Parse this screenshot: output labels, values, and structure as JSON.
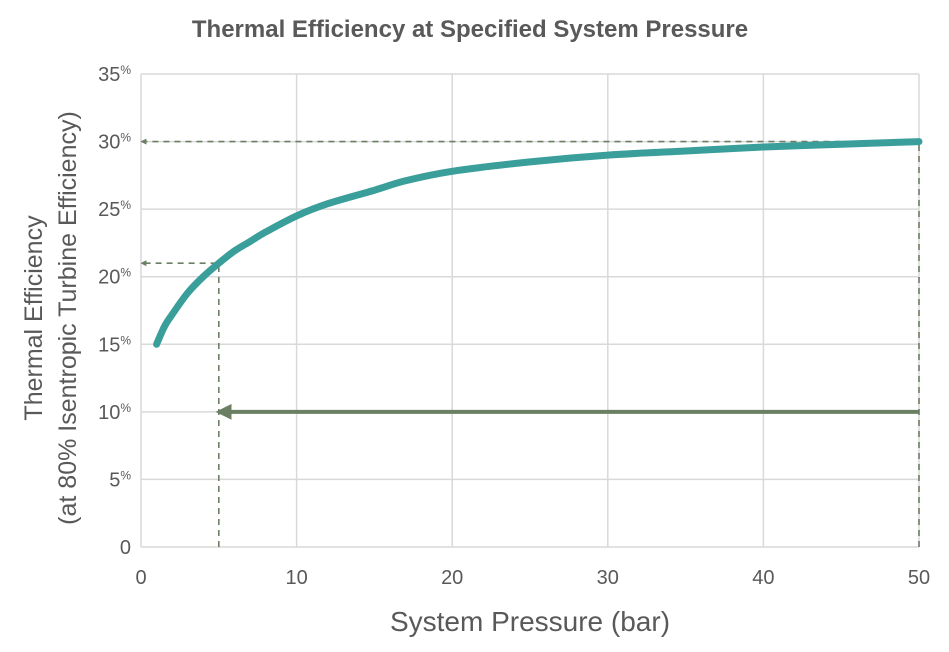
{
  "chart_data": {
    "type": "line",
    "title": "Thermal Efficiency at Specified System Pressure",
    "xlabel": "System Pressure (bar)",
    "ylabel": [
      "Thermal Efficiency",
      "(at 80% Isentropic Turbine Efficiency)"
    ],
    "xlim": [
      0,
      50
    ],
    "ylim": [
      0,
      35
    ],
    "x_ticks": [
      "0",
      "10",
      "20",
      "30",
      "40",
      "50"
    ],
    "y_ticks": [
      {
        "value": 0,
        "label": "0",
        "suffix": ""
      },
      {
        "value": 5,
        "label": "5",
        "suffix": "%"
      },
      {
        "value": 10,
        "label": "10",
        "suffix": "%"
      },
      {
        "value": 15,
        "label": "15",
        "suffix": "%"
      },
      {
        "value": 20,
        "label": "20",
        "suffix": "%"
      },
      {
        "value": 25,
        "label": "25",
        "suffix": "%"
      },
      {
        "value": 30,
        "label": "30",
        "suffix": "%"
      },
      {
        "value": 35,
        "label": "35",
        "suffix": "%"
      }
    ],
    "grid": true,
    "series": [
      {
        "color": "#3a9e9a",
        "x": [
          1,
          1.5,
          2,
          3,
          4,
          5,
          6,
          7,
          8,
          10,
          12,
          15,
          17,
          20,
          25,
          30,
          35,
          40,
          45,
          50
        ],
        "y": [
          15.0,
          16.3,
          17.2,
          18.8,
          20.0,
          21.0,
          21.9,
          22.6,
          23.3,
          24.5,
          25.4,
          26.4,
          27.1,
          27.8,
          28.5,
          29.0,
          29.3,
          29.6,
          29.8,
          30.0
        ]
      }
    ],
    "annotations": [
      {
        "kind": "dashed-arrow",
        "color": "#6b7f64",
        "points": [
          [
            50,
            0
          ],
          [
            50,
            30
          ],
          [
            0,
            30
          ]
        ]
      },
      {
        "kind": "dashed-arrow",
        "color": "#6b7f64",
        "points": [
          [
            5,
            0
          ],
          [
            5,
            21
          ],
          [
            0,
            21
          ]
        ]
      },
      {
        "kind": "solid-arrow",
        "color": "#6b7f64",
        "points": [
          [
            50,
            10
          ],
          [
            5,
            10
          ]
        ]
      }
    ]
  }
}
